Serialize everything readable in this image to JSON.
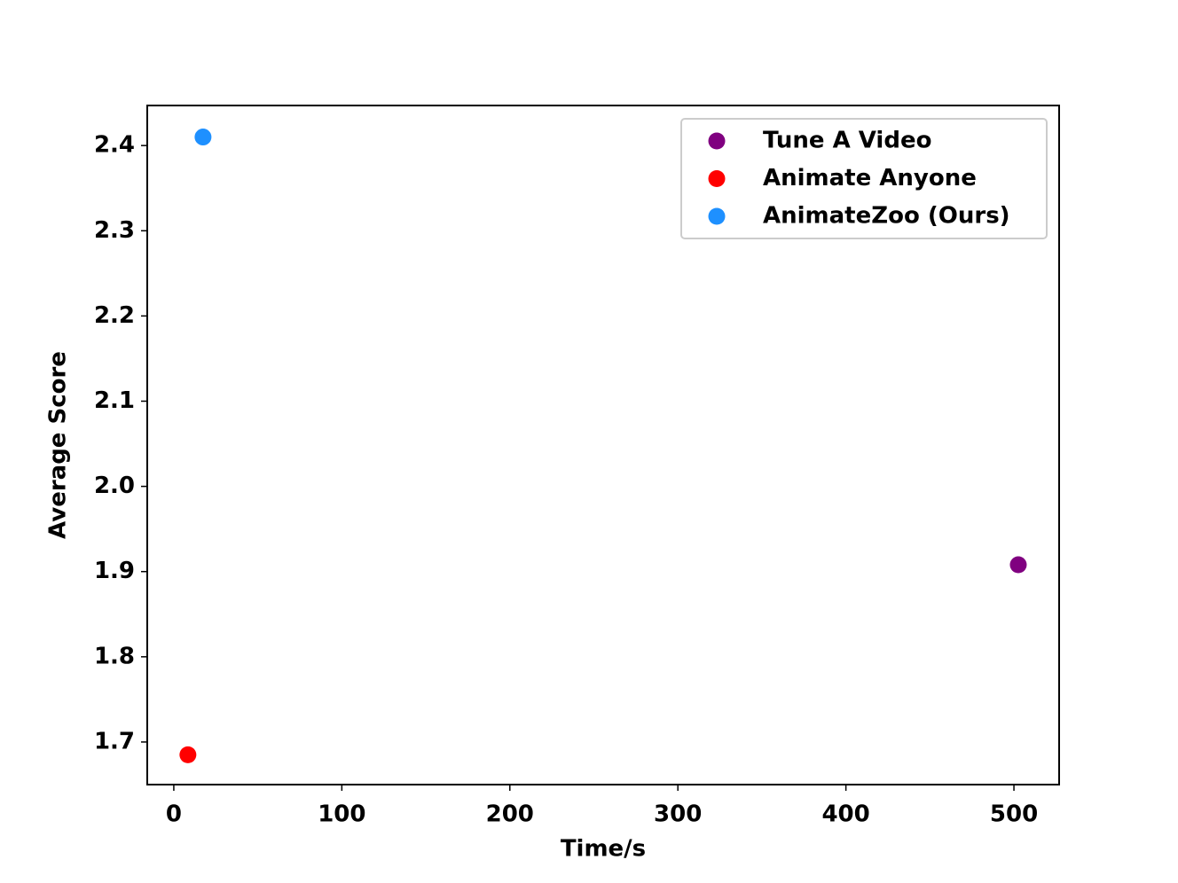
{
  "chart_data": {
    "type": "scatter",
    "xlabel": "Time/s",
    "ylabel": "Average Score",
    "series": [
      {
        "name": "Tune A Video",
        "color": "#800080",
        "x": [
          502.6
        ],
        "y": [
          1.908
        ]
      },
      {
        "name": "Animate Anyone",
        "color": "#ff0000",
        "x": [
          8.4
        ],
        "y": [
          1.685
        ]
      },
      {
        "name": "AnimateZoo (Ours)",
        "color": "#1e90ff",
        "x": [
          17.4
        ],
        "y": [
          2.41
        ]
      }
    ],
    "xlim": [
      -15.8,
      526.9
    ],
    "xticks": [
      0,
      100,
      200,
      300,
      400,
      500
    ],
    "ylim": [
      1.65,
      2.447
    ],
    "yticks": [
      1.7,
      1.8,
      1.9,
      {
        "value": 2,
        "label": "2.0"
      },
      2.1,
      2.2,
      2.3,
      2.4
    ],
    "legend": "upper right"
  }
}
